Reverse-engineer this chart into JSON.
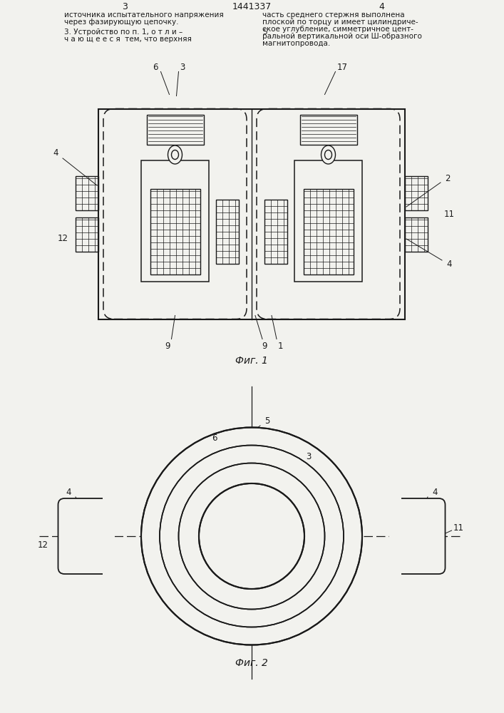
{
  "page_width": 7.07,
  "page_height": 10.0,
  "bg_color": "#f2f2ee",
  "line_color": "#1a1a1a",
  "header_left_num": "3",
  "header_center_num": "1441337",
  "header_right_num": "4",
  "left_text": [
    "источника испытательного напряжения",
    "через фазирующую цепочку."
  ],
  "right_text": [
    "часть среднего стержня выполнена",
    "плоской по торцу и имеет цилиндриче-",
    "ское углубление, симметричное цент-",
    "ральной вертикальной оси Ш-образного",
    "магнитопровода."
  ],
  "claim_line1": "3. Устройство по п. 1, о т л и –",
  "claim_line2": "ч а ю щ е е с я  тем, что верхняя",
  "fig1_caption": "Фиг. 1",
  "fig2_caption": "Фиг. 2"
}
